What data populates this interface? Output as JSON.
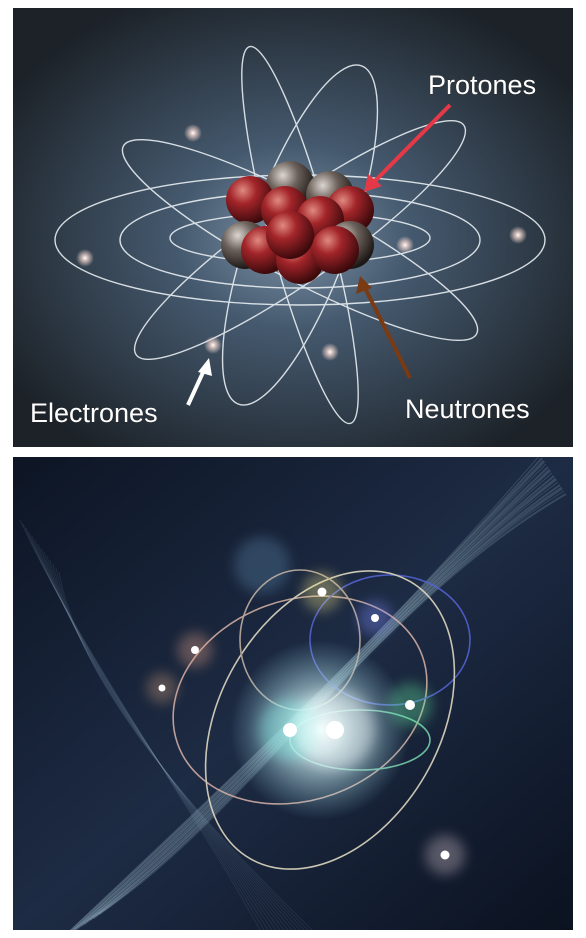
{
  "top_image": {
    "labels": {
      "protons": "Protones",
      "neutrons": "Neutrones",
      "electrons": "Electrones"
    }
  }
}
